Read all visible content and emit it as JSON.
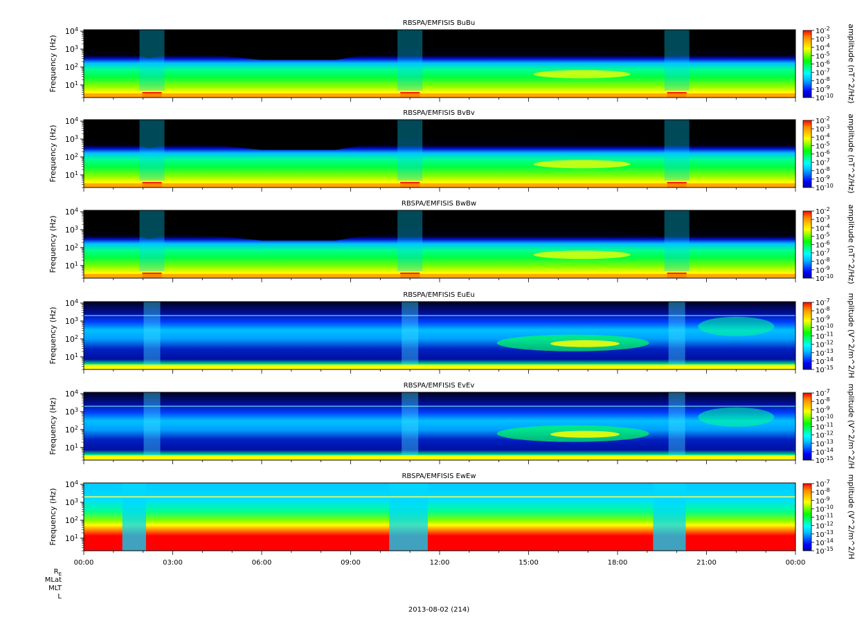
{
  "figure": {
    "date_label": "2013-08-02 (214)",
    "ephemeris_labels": [
      "R",
      "MLat",
      "MLT",
      "L"
    ],
    "ephemeris_subscript": "E"
  },
  "chart_data": [
    {
      "type": "heatmap",
      "title": "RBSPA/EMFISIS  BuBu",
      "ylabel": "Frequency (Hz)",
      "yscale": "log",
      "ylim": [
        2,
        12000
      ],
      "yticks": [
        10,
        100,
        1000,
        10000
      ],
      "ytick_labels": [
        [
          "10",
          "1"
        ],
        [
          "10",
          "2"
        ],
        [
          "10",
          "3"
        ],
        [
          "10",
          "4"
        ]
      ],
      "colorbar": {
        "label": "amplitude (nT^2/Hz)",
        "range": [
          1e-10,
          0.01
        ],
        "ticks": [
          [
            "10",
            "-2"
          ],
          [
            "10",
            "-3"
          ],
          [
            "10",
            "-4"
          ],
          [
            "10",
            "-5"
          ],
          [
            "10",
            "-6"
          ],
          [
            "10",
            "-7"
          ],
          [
            "10",
            "-8"
          ],
          [
            "10",
            "-9"
          ],
          [
            "10",
            "-10"
          ]
        ]
      }
    },
    {
      "type": "heatmap",
      "title": "RBSPA/EMFISIS  BvBv",
      "ylabel": "Frequency (Hz)",
      "yscale": "log",
      "ylim": [
        2,
        12000
      ],
      "yticks": [
        10,
        100,
        1000,
        10000
      ],
      "ytick_labels": [
        [
          "10",
          "1"
        ],
        [
          "10",
          "2"
        ],
        [
          "10",
          "3"
        ],
        [
          "10",
          "4"
        ]
      ],
      "colorbar": {
        "label": "amplitude (nT^2/Hz)",
        "range": [
          1e-10,
          0.01
        ],
        "ticks": [
          [
            "10",
            "-2"
          ],
          [
            "10",
            "-3"
          ],
          [
            "10",
            "-4"
          ],
          [
            "10",
            "-5"
          ],
          [
            "10",
            "-6"
          ],
          [
            "10",
            "-7"
          ],
          [
            "10",
            "-8"
          ],
          [
            "10",
            "-9"
          ],
          [
            "10",
            "-10"
          ]
        ]
      }
    },
    {
      "type": "heatmap",
      "title": "RBSPA/EMFISIS  BwBw",
      "ylabel": "Frequency (Hz)",
      "yscale": "log",
      "ylim": [
        2,
        12000
      ],
      "yticks": [
        10,
        100,
        1000,
        10000
      ],
      "ytick_labels": [
        [
          "10",
          "1"
        ],
        [
          "10",
          "2"
        ],
        [
          "10",
          "3"
        ],
        [
          "10",
          "4"
        ]
      ],
      "colorbar": {
        "label": "amplitude (nT^2/Hz)",
        "range": [
          1e-10,
          0.01
        ],
        "ticks": [
          [
            "10",
            "-2"
          ],
          [
            "10",
            "-3"
          ],
          [
            "10",
            "-4"
          ],
          [
            "10",
            "-5"
          ],
          [
            "10",
            "-6"
          ],
          [
            "10",
            "-7"
          ],
          [
            "10",
            "-8"
          ],
          [
            "10",
            "-9"
          ],
          [
            "10",
            "-10"
          ]
        ]
      }
    },
    {
      "type": "heatmap",
      "title": "RBSPA/EMFISIS  EuEu",
      "ylabel": "Frequency (Hz)",
      "yscale": "log",
      "ylim": [
        2,
        12000
      ],
      "yticks": [
        10,
        100,
        1000,
        10000
      ],
      "ytick_labels": [
        [
          "10",
          "1"
        ],
        [
          "10",
          "2"
        ],
        [
          "10",
          "3"
        ],
        [
          "10",
          "4"
        ]
      ],
      "colorbar": {
        "label": "mplitude (V^2/m^2/H",
        "range": [
          1e-15,
          1e-07
        ],
        "ticks": [
          [
            "10",
            "-7"
          ],
          [
            "10",
            "-8"
          ],
          [
            "10",
            "-9"
          ],
          [
            "10",
            "-10"
          ],
          [
            "10",
            "-11"
          ],
          [
            "10",
            "-12"
          ],
          [
            "10",
            "-13"
          ],
          [
            "10",
            "-14"
          ],
          [
            "10",
            "-15"
          ]
        ]
      }
    },
    {
      "type": "heatmap",
      "title": "RBSPA/EMFISIS  EvEv",
      "ylabel": "Frequency (Hz)",
      "yscale": "log",
      "ylim": [
        2,
        12000
      ],
      "yticks": [
        10,
        100,
        1000,
        10000
      ],
      "ytick_labels": [
        [
          "10",
          "1"
        ],
        [
          "10",
          "2"
        ],
        [
          "10",
          "3"
        ],
        [
          "10",
          "4"
        ]
      ],
      "colorbar": {
        "label": "mplitude (V^2/m^2/H",
        "range": [
          1e-15,
          1e-07
        ],
        "ticks": [
          [
            "10",
            "-7"
          ],
          [
            "10",
            "-8"
          ],
          [
            "10",
            "-9"
          ],
          [
            "10",
            "-10"
          ],
          [
            "10",
            "-11"
          ],
          [
            "10",
            "-12"
          ],
          [
            "10",
            "-13"
          ],
          [
            "10",
            "-14"
          ],
          [
            "10",
            "-15"
          ]
        ]
      }
    },
    {
      "type": "heatmap",
      "title": "RBSPA/EMFISIS  EwEw",
      "ylabel": "Frequency (Hz)",
      "yscale": "log",
      "ylim": [
        2,
        12000
      ],
      "yticks": [
        10,
        100,
        1000,
        10000
      ],
      "ytick_labels": [
        [
          "10",
          "1"
        ],
        [
          "10",
          "2"
        ],
        [
          "10",
          "3"
        ],
        [
          "10",
          "4"
        ]
      ],
      "colorbar": {
        "label": "mplitude (V^2/m^2/H",
        "range": [
          1e-15,
          1e-07
        ],
        "ticks": [
          [
            "10",
            "-7"
          ],
          [
            "10",
            "-8"
          ],
          [
            "10",
            "-9"
          ],
          [
            "10",
            "-10"
          ],
          [
            "10",
            "-11"
          ],
          [
            "10",
            "-12"
          ],
          [
            "10",
            "-13"
          ],
          [
            "10",
            "-14"
          ],
          [
            "10",
            "-15"
          ]
        ]
      },
      "xlabel": "",
      "xlim": [
        "00:00",
        "24:00"
      ],
      "xtick_labels": [
        "00:00",
        "03:00",
        "06:00",
        "09:00",
        "12:00",
        "15:00",
        "18:00",
        "21:00",
        "00:00"
      ]
    }
  ],
  "colors": {
    "background": "#000000",
    "colormap": [
      "#0000a0",
      "#0000ff",
      "#0060ff",
      "#00c0ff",
      "#00ffff",
      "#00ff80",
      "#00ff00",
      "#80ff00",
      "#ffff00",
      "#ffc000",
      "#ff8000",
      "#ff0000"
    ]
  }
}
